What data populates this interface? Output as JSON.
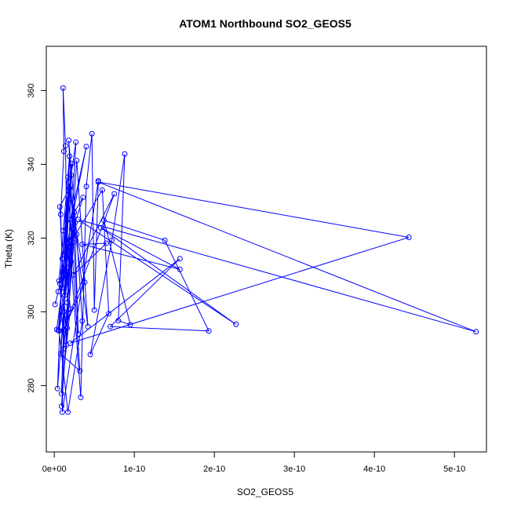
{
  "chart_data": {
    "type": "line",
    "title": "ATOM1 Northbound SO2_GEOS5",
    "xlabel": "SO2_GEOS5",
    "ylabel": "Theta (K)",
    "xlim": [
      -1e-11,
      5.4e-10
    ],
    "ylim": [
      262,
      372
    ],
    "x_ticks": [
      0,
      1e-10,
      2e-10,
      3e-10,
      4e-10,
      5e-10
    ],
    "x_tick_labels": [
      "0e+00",
      "1e-10",
      "2e-10",
      "3e-10",
      "4e-10",
      "5e-10"
    ],
    "y_ticks": [
      280,
      300,
      320,
      340,
      360
    ],
    "y_tick_labels": [
      "280",
      "300",
      "320",
      "340",
      "360"
    ],
    "grid": false,
    "legend": "none",
    "series": [
      {
        "color": "#0000ff",
        "marker": "open-circle",
        "points": [
          [
            1e-12,
            302.0
          ],
          [
            5e-12,
            305.5
          ],
          [
            1e-11,
            310.8
          ],
          [
            8e-12,
            326.4
          ],
          [
            1.2e-11,
            343.5
          ],
          [
            1.1e-11,
            360.7
          ],
          [
            1.4e-11,
            345.0
          ],
          [
            1.6e-11,
            312.0
          ],
          [
            4e-12,
            279.2
          ],
          [
            1e-11,
            314.4
          ],
          [
            1.8e-11,
            335.0
          ],
          [
            1.3e-11,
            318.0
          ],
          [
            2e-11,
            300.8
          ],
          [
            9e-12,
            277.8
          ],
          [
            1.5e-11,
            319.4
          ],
          [
            2.2e-11,
            340.2
          ],
          [
            7e-12,
            307.6
          ],
          [
            1.2e-11,
            290.0
          ],
          [
            2.5e-11,
            327.0
          ],
          [
            3e-11,
            294.0
          ],
          [
            1.8e-11,
            346.5
          ],
          [
            2.8e-11,
            321.0
          ],
          [
            3.5e-11,
            297.5
          ],
          [
            1.7e-11,
            272.8
          ],
          [
            6e-12,
            294.8
          ],
          [
            2.1e-11,
            313.6
          ],
          [
            3.3e-11,
            276.8
          ],
          [
            4e-11,
            334.0
          ],
          [
            4.7e-11,
            348.3
          ],
          [
            5e-11,
            300.5
          ],
          [
            5.5e-11,
            335.5
          ],
          [
            1e-11,
            272.8
          ],
          [
            1.4e-11,
            316.5
          ],
          [
            6e-11,
            333.0
          ],
          [
            6.8e-11,
            299.5
          ],
          [
            4.5e-11,
            288.4
          ],
          [
            7.2e-11,
            319.4
          ],
          [
            8.8e-11,
            342.8
          ],
          [
            8e-11,
            297.6
          ],
          [
            9.5e-11,
            296.5
          ],
          [
            6.2e-11,
            324.8
          ],
          [
            1.38e-10,
            319.4
          ],
          [
            1.93e-10,
            294.8
          ],
          [
            7e-11,
            296.0
          ],
          [
            1.57e-10,
            314.4
          ],
          [
            2e-11,
            291.5
          ],
          [
            4.43e-10,
            320.2
          ],
          [
            5.5e-11,
            335.2
          ],
          [
            5.27e-10,
            294.6
          ],
          [
            3e-11,
            325.0
          ],
          [
            2.27e-10,
            296.6
          ],
          [
            5.8e-11,
            322.8
          ],
          [
            1.57e-10,
            311.5
          ],
          [
            3.5e-11,
            318.3
          ],
          [
            6.5e-11,
            318.6
          ],
          [
            2.4e-11,
            310.0
          ],
          [
            7.5e-11,
            332.0
          ],
          [
            1.2e-11,
            295.2
          ],
          [
            3.8e-11,
            308.0
          ],
          [
            1.7e-11,
            336.5
          ],
          [
            4.2e-11,
            296.0
          ],
          [
            2.8e-11,
            341.0
          ],
          [
            1.6e-11,
            302.5
          ],
          [
            2.7e-11,
            346.0
          ],
          [
            1.1e-11,
            322.0
          ],
          [
            3.6e-11,
            331.0
          ],
          [
            1.4e-11,
            316.0
          ],
          [
            4e-11,
            344.8
          ],
          [
            2e-11,
            325.0
          ],
          [
            8e-12,
            288.6
          ],
          [
            3.2e-11,
            284.0
          ],
          [
            1.8e-11,
            330.6
          ],
          [
            5e-12,
            295.0
          ],
          [
            2.3e-11,
            318.8
          ],
          [
            9e-12,
            274.4
          ],
          [
            2.6e-11,
            324.2
          ],
          [
            1.3e-11,
            304.5
          ],
          [
            1.9e-11,
            333.5
          ],
          [
            7e-12,
            328.5
          ],
          [
            1.5e-11,
            291.0
          ],
          [
            2.1e-11,
            337.0
          ],
          [
            1e-11,
            306.5
          ],
          [
            2.4e-11,
            322.4
          ],
          [
            1.6e-11,
            295.6
          ],
          [
            6e-12,
            308.4
          ],
          [
            1.9e-11,
            342.2
          ],
          [
            1.2e-11,
            300.0
          ],
          [
            1.7e-11,
            318.4
          ],
          [
            3e-12,
            295.2
          ]
        ]
      }
    ]
  }
}
